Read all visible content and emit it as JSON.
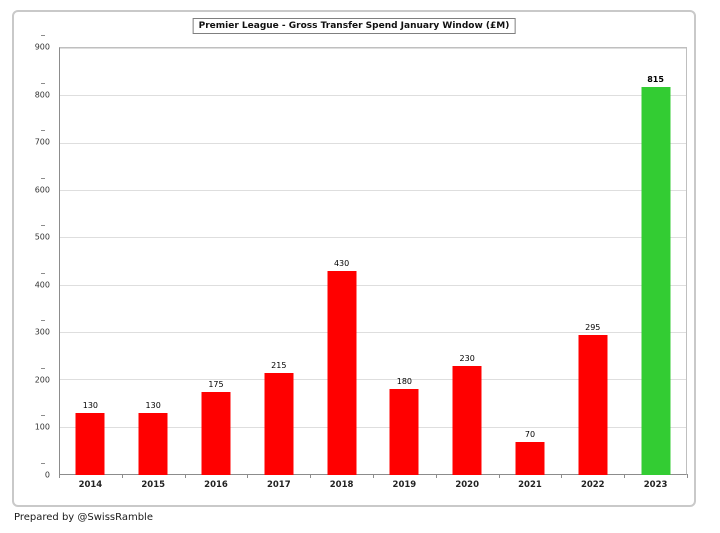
{
  "title": "Premier League - Gross Transfer Spend January Window (£M)",
  "footer": "Prepared by @SwissRamble",
  "colors": {
    "bar_default": "#ff0000",
    "bar_highlight": "#33cc33",
    "gridline": "#dedede",
    "axis": "#8c8c8c",
    "outer_border": "#c9c9c9"
  },
  "chart_data": {
    "type": "bar",
    "title": "Premier League - Gross Transfer Spend January Window (£M)",
    "categories": [
      "2014",
      "2015",
      "2016",
      "2017",
      "2018",
      "2019",
      "2020",
      "2021",
      "2022",
      "2023"
    ],
    "values": [
      130,
      130,
      175,
      215,
      430,
      180,
      230,
      70,
      295,
      815
    ],
    "highlight_index": 9,
    "xlabel": "",
    "ylabel": "",
    "ylim": [
      0,
      900
    ],
    "ytick_step": 100,
    "grid": true,
    "legend": false
  }
}
